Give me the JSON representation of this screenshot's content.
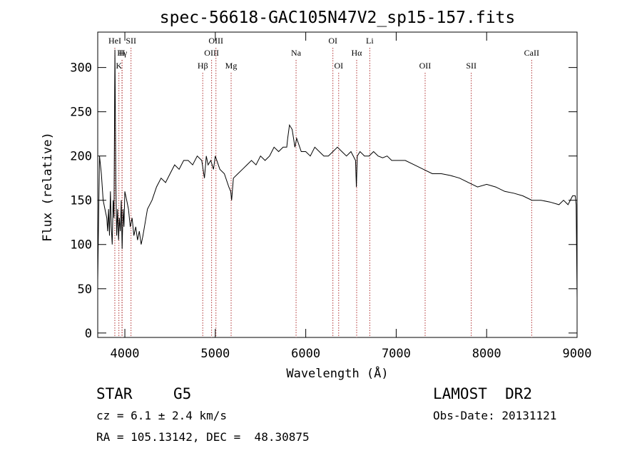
{
  "chart_data": {
    "type": "line",
    "title": "spec-56618-GAC105N47V2_sp15-157.fits",
    "xlabel": "Wavelength (Å)",
    "ylabel": "Flux (relative)",
    "xlim": [
      3700,
      9000
    ],
    "ylim": [
      -5,
      340
    ],
    "x_ticks": [
      4000,
      5000,
      6000,
      7000,
      8000,
      9000
    ],
    "y_ticks": [
      0,
      50,
      100,
      150,
      200,
      250,
      300
    ],
    "grid": false,
    "line_color": "#000000",
    "marker_color": "#b03030",
    "series": [
      {
        "x": [
          3700,
          3720,
          3740,
          3760,
          3780,
          3800,
          3810,
          3820,
          3830,
          3840,
          3850,
          3860,
          3870,
          3880,
          3890,
          3900,
          3910,
          3920,
          3930,
          3940,
          3950,
          3960,
          3970,
          3980,
          3990,
          4000,
          4020,
          4040,
          4060,
          4080,
          4100,
          4120,
          4140,
          4160,
          4180,
          4200,
          4250,
          4300,
          4350,
          4400,
          4450,
          4500,
          4550,
          4600,
          4650,
          4700,
          4750,
          4800,
          4850,
          4880,
          4900,
          4920,
          4950,
          4980,
          5000,
          5050,
          5100,
          5150,
          5170,
          5180,
          5200,
          5250,
          5300,
          5350,
          5400,
          5450,
          5500,
          5550,
          5600,
          5650,
          5700,
          5750,
          5790,
          5800,
          5820,
          5850,
          5880,
          5900,
          5950,
          6000,
          6050,
          6100,
          6150,
          6200,
          6250,
          6300,
          6350,
          6400,
          6450,
          6500,
          6550,
          6560,
          6570,
          6600,
          6650,
          6700,
          6750,
          6800,
          6850,
          6900,
          6950,
          7000,
          7100,
          7200,
          7300,
          7400,
          7500,
          7600,
          7700,
          7800,
          7900,
          8000,
          8100,
          8200,
          8300,
          8400,
          8500,
          8600,
          8700,
          8800,
          8850,
          8900,
          8950,
          8980,
          8990,
          9000
        ],
        "y": [
          60,
          200,
          180,
          150,
          140,
          130,
          115,
          140,
          110,
          160,
          120,
          100,
          150,
          130,
          320,
          170,
          110,
          140,
          105,
          130,
          115,
          150,
          95,
          140,
          120,
          160,
          150,
          140,
          120,
          130,
          110,
          120,
          105,
          115,
          100,
          110,
          140,
          150,
          165,
          175,
          170,
          180,
          190,
          185,
          195,
          195,
          190,
          200,
          195,
          175,
          200,
          190,
          195,
          185,
          200,
          185,
          180,
          165,
          160,
          150,
          175,
          180,
          185,
          190,
          195,
          190,
          200,
          195,
          200,
          210,
          205,
          210,
          210,
          220,
          235,
          230,
          210,
          220,
          205,
          205,
          200,
          210,
          205,
          200,
          200,
          205,
          210,
          205,
          200,
          205,
          195,
          165,
          200,
          205,
          200,
          200,
          205,
          200,
          198,
          200,
          195,
          195,
          195,
          190,
          185,
          180,
          180,
          178,
          175,
          170,
          165,
          168,
          165,
          160,
          158,
          155,
          150,
          150,
          148,
          145,
          150,
          145,
          155,
          155,
          145,
          40
        ]
      }
    ],
    "lines_top": [
      {
        "label": "HeI",
        "x": 3889
      },
      {
        "label": "SII",
        "x": 4068
      },
      {
        "label": "OIII",
        "x": 5007
      },
      {
        "label": "OI",
        "x": 6300
      },
      {
        "label": "Li",
        "x": 6708
      }
    ],
    "lines_mid": [
      {
        "label": "Hγ",
        "x": 3970
      },
      {
        "label": "H",
        "x": 3968
      },
      {
        "label": "OIII",
        "x": 4959
      },
      {
        "label": "Na",
        "x": 5893
      },
      {
        "label": "Hα",
        "x": 6563
      },
      {
        "label": "CaII",
        "x": 8498
      }
    ],
    "lines_low": [
      {
        "label": "K",
        "x": 3934
      },
      {
        "label": "Hβ",
        "x": 4861
      },
      {
        "label": "Mg",
        "x": 5175
      },
      {
        "label": "OI",
        "x": 6364
      },
      {
        "label": "OII",
        "x": 7320
      },
      {
        "label": "SII",
        "x": 7830
      }
    ]
  },
  "info": {
    "object_class": "STAR",
    "subclass": "G5",
    "survey": "LAMOST  DR2",
    "redshift": "cz = 6.1 ± 2.4 km/s",
    "obs_date": "Obs-Date: 20131121",
    "coords": "RA = 105.13142, DEC =  48.30875"
  }
}
